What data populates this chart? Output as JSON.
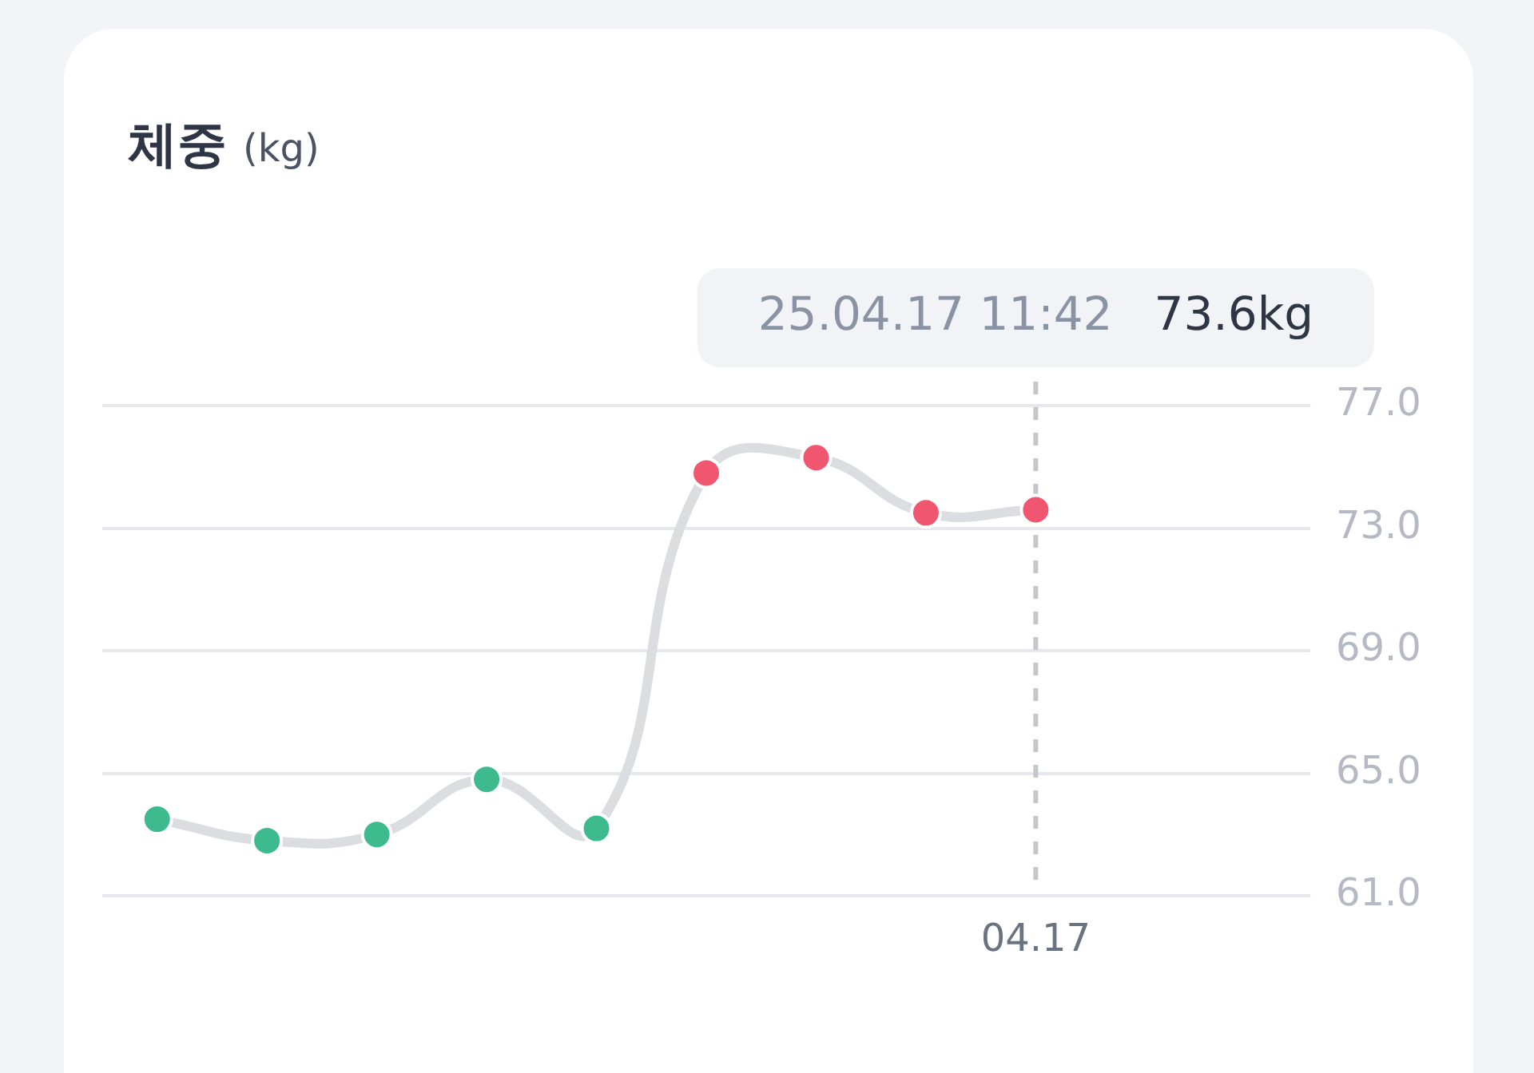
{
  "chart_data": {
    "type": "line",
    "title": "체중",
    "subtitle": "(kg)",
    "categories": [
      null,
      null,
      null,
      null,
      null,
      null,
      null,
      null,
      "04.17",
      null,
      null
    ],
    "series": [
      {
        "color": "#dcdde1",
        "colors": [
          "#3dbb8f",
          "#3dbb8f",
          "#3dbb8f",
          "#3dbb8f",
          "#3dbb8f",
          "#f0566f",
          "#f0566f",
          "#f0566f",
          "#f0566f",
          null,
          null
        ],
        "values": [
          63.5,
          62.8,
          63.0,
          64.8,
          63.2,
          74.8,
          75.3,
          73.5,
          73.6,
          null,
          null
        ]
      }
    ],
    "annotations": [
      "25.04.17 11:42",
      "73.6kg"
    ],
    "ref_lines": [
      {
        "axis": "x",
        "value": "04.17",
        "color": "#c4c6cc",
        "line_style": "dashed"
      }
    ],
    "ylim": [
      61,
      77
    ],
    "yticks": [
      {
        "value": 61,
        "label": "61.0"
      },
      {
        "value": 65,
        "label": "65.0"
      },
      {
        "value": 69,
        "label": "69.0"
      },
      {
        "value": 73,
        "label": "73.0"
      },
      {
        "value": 77,
        "label": "77.0"
      }
    ],
    "grid": "y",
    "legend": false,
    "marker": "circle",
    "line_style": "solid"
  }
}
